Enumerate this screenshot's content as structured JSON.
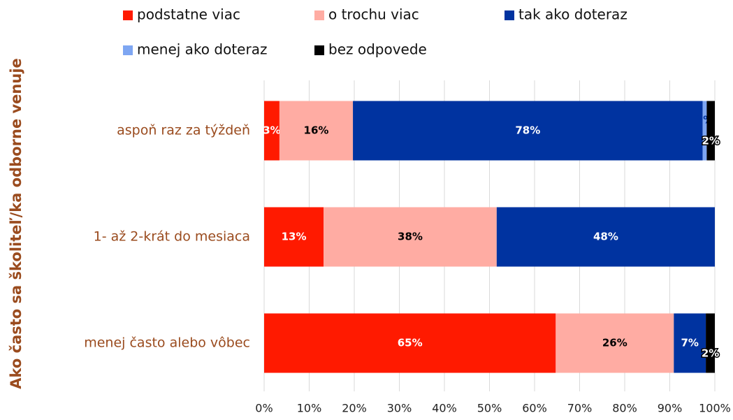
{
  "chart_data": {
    "type": "stacked-barh",
    "y_label": "Ako často sa školiteľ/ka odborne venuje",
    "categories": [
      "aspoň raz za týždeň",
      "1- až 2-krát do mesiaca",
      "menej často alebo vôbec"
    ],
    "series": [
      {
        "name": "podstatne viac",
        "color": "#ff1a00",
        "label_color": "#ffffff",
        "values": [
          3.4,
          13.2,
          64.7
        ],
        "value_labels": [
          "3%",
          "13%",
          "65%"
        ]
      },
      {
        "name": "o trochu viac",
        "color": "#ffaca3",
        "label_color": "#000000",
        "values": [
          16.3,
          38.4,
          26.2
        ],
        "value_labels": [
          "16%",
          "38%",
          "26%"
        ]
      },
      {
        "name": "tak ako doteraz",
        "color": "#0033a0",
        "label_color": "#ffffff",
        "values": [
          77.6,
          48.4,
          7.1
        ],
        "value_labels": [
          "78%",
          "48%",
          "7%"
        ]
      },
      {
        "name": "menej ako doteraz",
        "color": "#7ea6f2",
        "label_color": "#0033a0",
        "values": [
          0.9,
          null,
          null
        ],
        "value_labels": [
          "1%",
          null,
          null
        ]
      },
      {
        "name": "bez odpovede",
        "color": "#000000",
        "label_color": "#ffffff",
        "values": [
          1.8,
          null,
          2.0
        ],
        "value_labels": [
          "2%",
          null,
          "2%"
        ]
      }
    ],
    "xlim": [
      0,
      100
    ],
    "xticks": [
      {
        "value": 0,
        "label": "0%"
      },
      {
        "value": 10,
        "label": "10%"
      },
      {
        "value": 20,
        "label": "20%"
      },
      {
        "value": 30,
        "label": "30%"
      },
      {
        "value": 40,
        "label": "40%"
      },
      {
        "value": 50,
        "label": "50%"
      },
      {
        "value": 60,
        "label": "60%"
      },
      {
        "value": 70,
        "label": "70%"
      },
      {
        "value": 80,
        "label": "80%"
      },
      {
        "value": 90,
        "label": "90%"
      },
      {
        "value": 100,
        "label": "100%"
      }
    ],
    "grid": true
  }
}
